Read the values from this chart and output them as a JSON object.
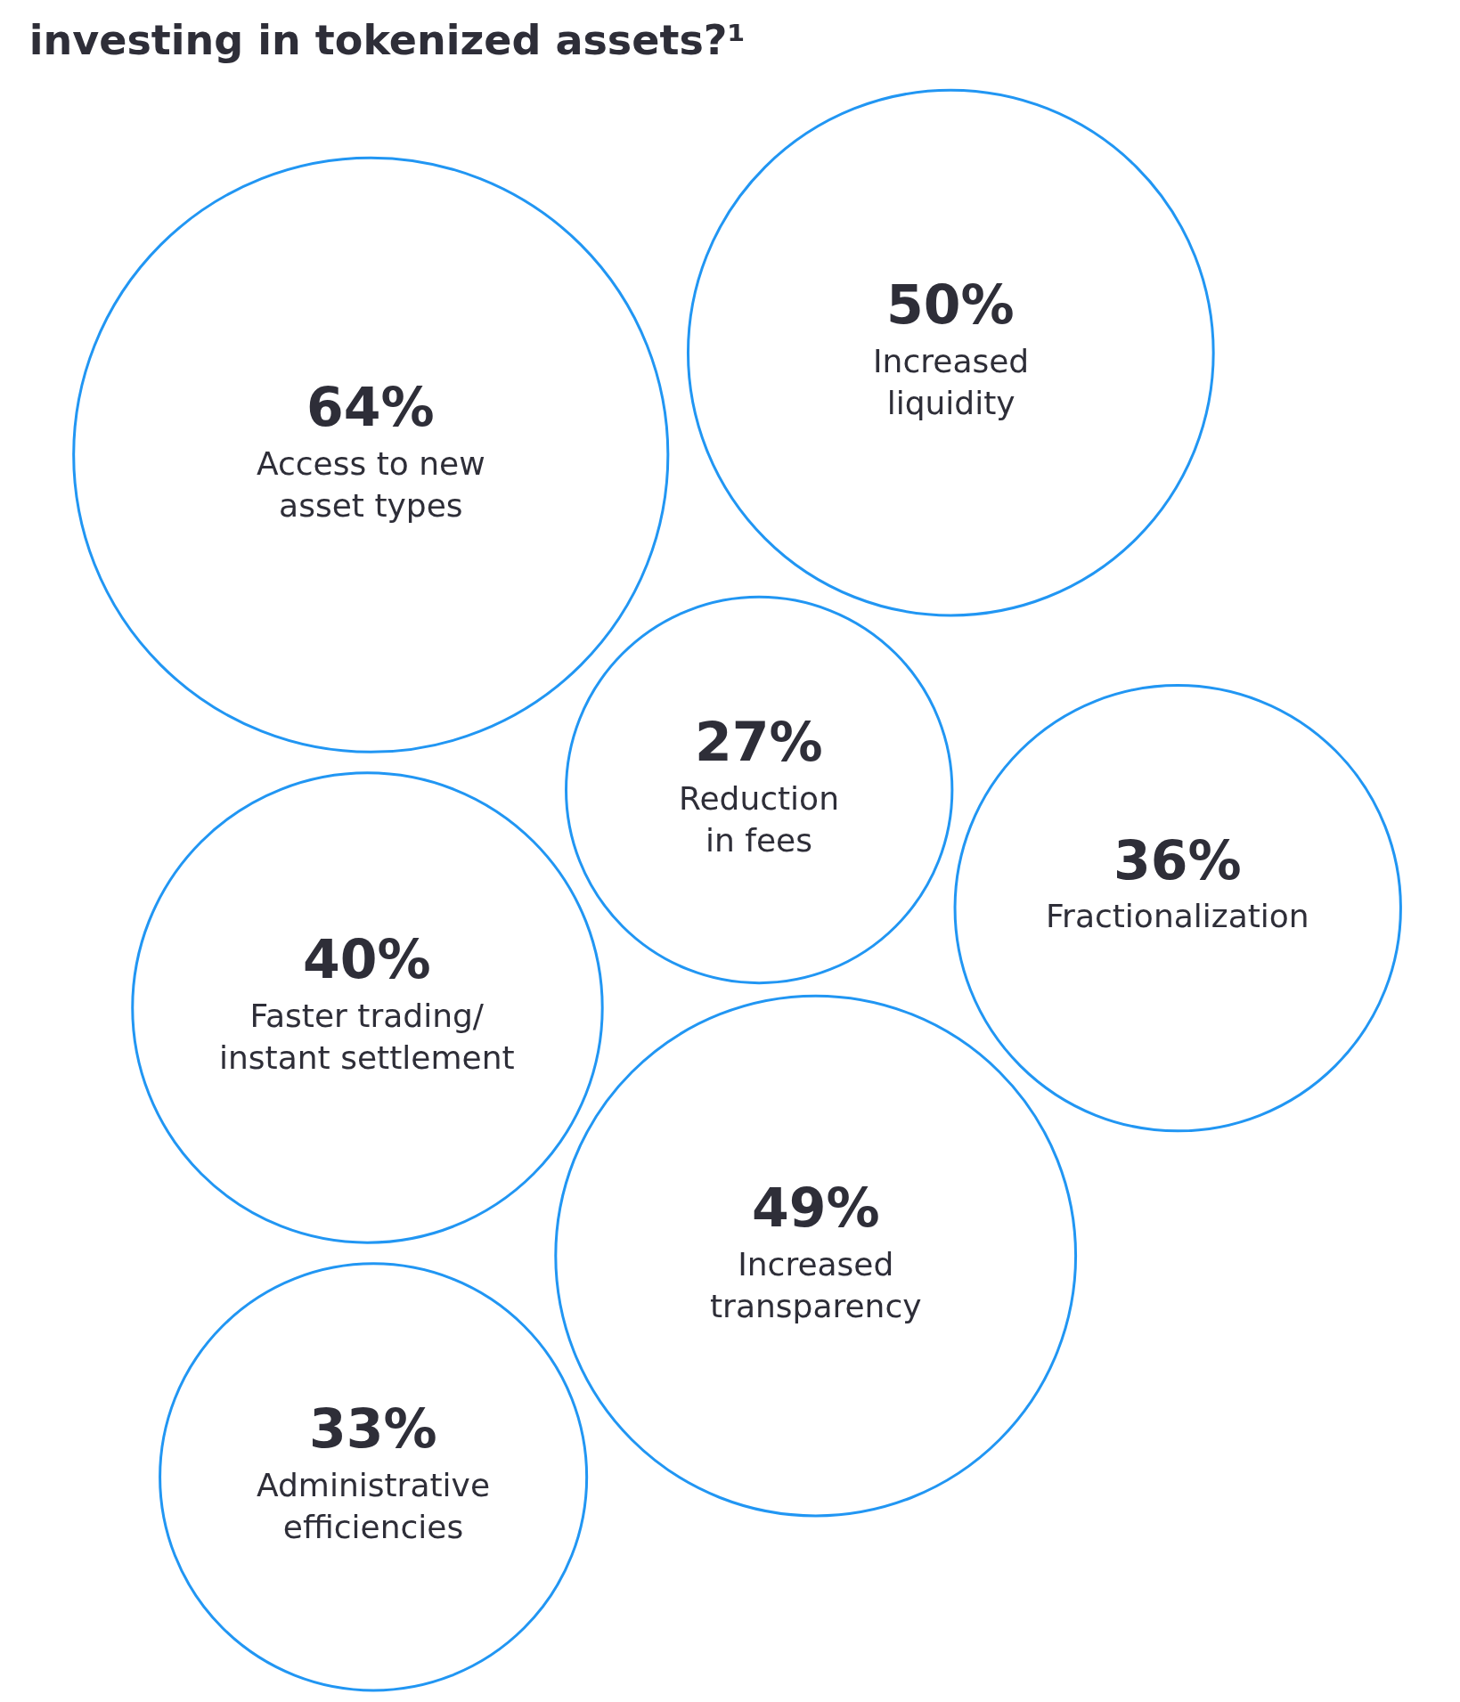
{
  "chart_data": {
    "type": "other",
    "title": "investing in tokenized assets?¹",
    "categories": [
      "Access to new asset types",
      "Increased liquidity",
      "Reduction in fees",
      "Fractionalization",
      "Faster trading/instant settlement",
      "Increased transparency",
      "Administrative efficiencies"
    ],
    "values": [
      64,
      50,
      27,
      36,
      40,
      49,
      33
    ],
    "value_labels": [
      "64%",
      "50%",
      "27%",
      "36%",
      "40%",
      "49%",
      "33%"
    ],
    "color": "#2196f3"
  }
}
